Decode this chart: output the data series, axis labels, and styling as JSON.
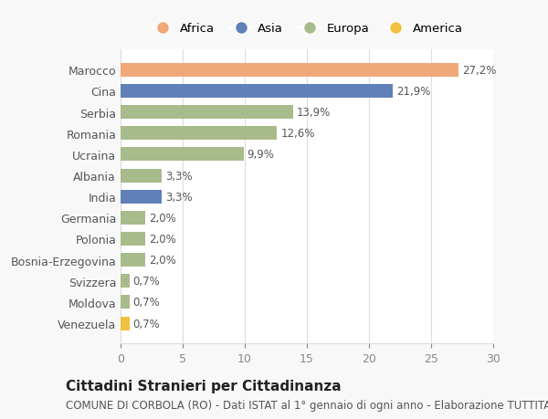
{
  "categories": [
    "Venezuela",
    "Moldova",
    "Svizzera",
    "Bosnia-Erzegovina",
    "Polonia",
    "Germania",
    "India",
    "Albania",
    "Ucraina",
    "Romania",
    "Serbia",
    "Cina",
    "Marocco"
  ],
  "values": [
    0.7,
    0.7,
    0.7,
    2.0,
    2.0,
    2.0,
    3.3,
    3.3,
    9.9,
    12.6,
    13.9,
    21.9,
    27.2
  ],
  "labels": [
    "0,7%",
    "0,7%",
    "0,7%",
    "2,0%",
    "2,0%",
    "2,0%",
    "3,3%",
    "3,3%",
    "9,9%",
    "12,6%",
    "13,9%",
    "21,9%",
    "27,2%"
  ],
  "colors": [
    "#f0c040",
    "#a8bb8a",
    "#a8bb8a",
    "#a8bb8a",
    "#a8bb8a",
    "#a8bb8a",
    "#6080b8",
    "#a8bb8a",
    "#a8bb8a",
    "#a8bb8a",
    "#a8bb8a",
    "#6080b8",
    "#f0a878"
  ],
  "legend_names": [
    "Africa",
    "Asia",
    "Europa",
    "America"
  ],
  "legend_colors": [
    "#f0a878",
    "#6080b8",
    "#a8bb8a",
    "#f0c040"
  ],
  "title": "Cittadini Stranieri per Cittadinanza",
  "subtitle": "COMUNE DI CORBOLA (RO) - Dati ISTAT al 1° gennaio di ogni anno - Elaborazione TUTTITALIA.IT",
  "xlim": [
    0,
    30
  ],
  "xticks": [
    0,
    5,
    10,
    15,
    20,
    25,
    30
  ],
  "background_color": "#f8f8f8",
  "bar_background": "#ffffff",
  "grid_color": "#dddddd",
  "title_fontsize": 11,
  "subtitle_fontsize": 8.5,
  "label_fontsize": 8.5,
  "tick_fontsize": 9
}
